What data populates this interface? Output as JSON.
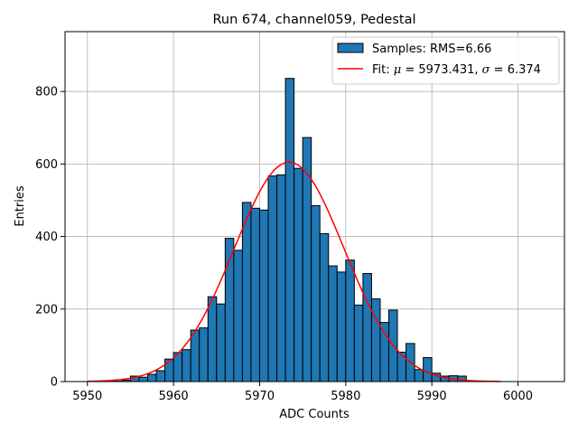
{
  "chart_data": {
    "type": "bar",
    "title": "Run 674, channel059, Pedestal",
    "xlabel": "ADC Counts",
    "ylabel": "Entries",
    "xlim": [
      5947.4,
      6005.4
    ],
    "ylim": [
      0,
      965
    ],
    "grid": true,
    "legend_position": "top-right",
    "colors": {
      "bars": "#1f77b4",
      "bar_edge": "#000000",
      "fit": "#ff0000",
      "grid": "#b0b0b0"
    },
    "x_ticks": [
      5950,
      5960,
      5970,
      5980,
      5990,
      6000
    ],
    "x_tick_labels": [
      "5950",
      "5960",
      "5970",
      "5980",
      "5990",
      "6000"
    ],
    "y_ticks": [
      0,
      200,
      400,
      600,
      800
    ],
    "y_tick_labels": [
      "0",
      "200",
      "400",
      "600",
      "800"
    ],
    "histogram": {
      "bin_start": 5950,
      "bin_width": 1,
      "counts": [
        0,
        0,
        1,
        1,
        4,
        15,
        12,
        20,
        30,
        62,
        80,
        88,
        142,
        148,
        234,
        214,
        395,
        362,
        494,
        478,
        473,
        567,
        570,
        836,
        588,
        673,
        485,
        408,
        319,
        302,
        335,
        211,
        298,
        228,
        163,
        197,
        81,
        105,
        33,
        66,
        23,
        15,
        16,
        15,
        0,
        0,
        0,
        0,
        0,
        0,
        0,
        0,
        0,
        0
      ]
    },
    "series": [
      {
        "name": "Samples: RMS=6.66",
        "kind": "histogram"
      },
      {
        "name": "Fit:",
        "kind": "gaussian-fit",
        "mu": 5973.431,
        "sigma": 6.374,
        "amplitude": 605,
        "x_range": [
          5950,
          5998
        ]
      }
    ],
    "legend": {
      "samples_label": "Samples: RMS=6.66",
      "fit_prefix": "Fit: ",
      "fit_mu_symbol": "μ",
      "fit_mu_value": " = 5973.431, ",
      "fit_sigma_symbol": "σ",
      "fit_sigma_value": " = 6.374"
    }
  }
}
